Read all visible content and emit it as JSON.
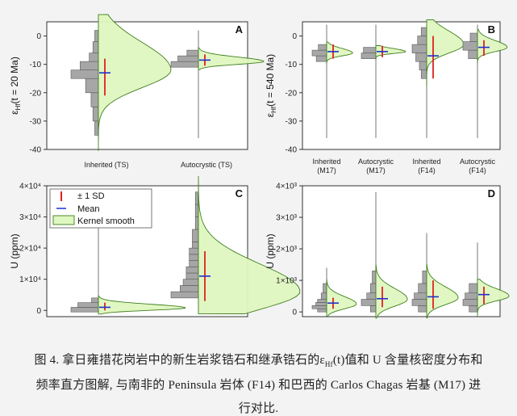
{
  "figure": {
    "caption": {
      "line1_a": "图 4. 拿日雍措花岗岩中的新生岩浆锆石和继承锆石的ε",
      "line1_sub": "Hf",
      "line1_b": "(t)值和 U 含量核密度分布和",
      "line2": "频率直方图解, 与南非的 Peninsula 岩体 (F14) 和巴西的 Carlos Chagas 岩基 (M17) 进",
      "line3": "行对比."
    }
  },
  "colors": {
    "kde_fill": "#dff7c0",
    "kde_stroke": "#3f7f1f",
    "hist_fill": "#a6a6a6",
    "hist_stroke": "#5a5a5a",
    "sd_bar": "#e02020",
    "mean_bar": "#1f2fd0",
    "axis": "#333333"
  },
  "chart_data": [
    {
      "panel": "A",
      "type": "violin-histogram",
      "ylabel_main": "ε",
      "ylabel_sub": "Hf",
      "ylabel_rest": "(t = 20 Ma)",
      "ylim": [
        -40,
        5
      ],
      "yticks": [
        "0",
        "-10",
        "-20",
        "-30",
        "-40"
      ],
      "ytick_values": [
        0,
        -10,
        -20,
        -30,
        -40
      ],
      "groups": [
        {
          "label_lines": [
            "Inherited (TS)"
          ],
          "mean": -13,
          "sd_low": -21,
          "sd_high": -8,
          "y_min": -35,
          "y_max": 2,
          "hist": [
            [
              -35,
              -30,
              2
            ],
            [
              -30,
              -25,
              3
            ],
            [
              -25,
              -20,
              4
            ],
            [
              -20,
              -15,
              7
            ],
            [
              -15,
              -12,
              15
            ],
            [
              -12,
              -9,
              10
            ],
            [
              -9,
              -6,
              5
            ],
            [
              -6,
              -2,
              3
            ],
            [
              -2,
              2,
              2
            ]
          ],
          "kde_peak": -12,
          "kde_scale": 1.0
        },
        {
          "label_lines": [
            "Autocrystic (TS)"
          ],
          "mean": -8.5,
          "sd_low": -10.5,
          "sd_high": -6.5,
          "y_min": -36,
          "y_max": 2,
          "hist": [
            [
              -11,
              -9,
              12
            ],
            [
              -9,
              -7,
              9
            ],
            [
              -7,
              -5,
              5
            ]
          ],
          "kde_peak": -9,
          "kde_scale": 0.9
        }
      ]
    },
    {
      "panel": "B",
      "type": "violin-histogram",
      "ylabel_main": "ε",
      "ylabel_sub": "Hf",
      "ylabel_rest": "(t = 540 Ma)",
      "ylim": [
        -40,
        5
      ],
      "yticks": [
        "0",
        "-10",
        "-20",
        "-30",
        "-40"
      ],
      "ytick_values": [
        0,
        -10,
        -20,
        -30,
        -40
      ],
      "groups": [
        {
          "label_lines": [
            "Inherited",
            "(M17)"
          ],
          "mean": -5.5,
          "sd_low": -8,
          "sd_high": -3,
          "y_min": -36,
          "y_max": 4,
          "hist": [
            [
              -9,
              -7,
              5
            ],
            [
              -7,
              -5,
              7
            ],
            [
              -5,
              -3,
              4
            ]
          ],
          "kde_peak": -6,
          "kde_scale": 0.7
        },
        {
          "label_lines": [
            "Autocrystic",
            "(M17)"
          ],
          "mean": -5.5,
          "sd_low": -7.5,
          "sd_high": -3.5,
          "y_min": -36,
          "y_max": 4,
          "hist": [
            [
              -8,
              -6,
              7
            ],
            [
              -6,
              -4,
              6
            ]
          ],
          "kde_peak": -5.5,
          "kde_scale": 0.8
        },
        {
          "label_lines": [
            "Inherited",
            "(F14)"
          ],
          "mean": -7,
          "sd_low": -15,
          "sd_high": 0,
          "y_min": -36,
          "y_max": 4,
          "hist": [
            [
              -15,
              -12,
              3
            ],
            [
              -12,
              -9,
              4
            ],
            [
              -9,
              -6,
              6
            ],
            [
              -6,
              -3,
              8
            ],
            [
              -3,
              0,
              5
            ],
            [
              0,
              3,
              3
            ]
          ],
          "kde_peak": -3,
          "kde_scale": 1.0
        },
        {
          "label_lines": [
            "Autocrystic",
            "(F14)"
          ],
          "mean": -4,
          "sd_low": -7,
          "sd_high": -1.5,
          "y_min": -36,
          "y_max": 4,
          "hist": [
            [
              -8,
              -5,
              5
            ],
            [
              -5,
              -2,
              8
            ],
            [
              -2,
              1,
              4
            ]
          ],
          "kde_peak": -4,
          "kde_scale": 0.8
        }
      ]
    },
    {
      "panel": "C",
      "type": "violin-histogram",
      "ylabel_main": "U (ppm)",
      "ylim": [
        -2000,
        40000
      ],
      "yticks": [
        "0",
        "1×10⁴",
        "2×10⁴",
        "3×10⁴",
        "4×10⁴"
      ],
      "ytick_values": [
        0,
        10000,
        20000,
        30000,
        40000
      ],
      "legend": [
        "± 1 SD",
        "Mean",
        "Kernel smooth"
      ],
      "groups": [
        {
          "label_lines": [],
          "mean": 1000,
          "sd_low": 0,
          "sd_high": 2500,
          "y_min": 0,
          "y_max": 38000,
          "hist": [
            [
              -500,
              1000,
              12
            ],
            [
              1000,
              2500,
              9
            ],
            [
              2500,
              4000,
              3
            ]
          ],
          "kde_peak": 800,
          "kde_scale": 1.2
        },
        {
          "label_lines": [],
          "mean": 11000,
          "sd_low": 3000,
          "sd_high": 19000,
          "y_min": 0,
          "y_max": 38000,
          "hist": [
            [
              4000,
              6000,
              9
            ],
            [
              6000,
              8000,
              6
            ],
            [
              8000,
              10000,
              5
            ],
            [
              10000,
              12000,
              4
            ],
            [
              12000,
              14000,
              4
            ],
            [
              14000,
              16000,
              3
            ],
            [
              16000,
              18000,
              3
            ],
            [
              18000,
              20000,
              3
            ],
            [
              20000,
              22000,
              2
            ],
            [
              22000,
              26000,
              2
            ],
            [
              26000,
              30000,
              1
            ],
            [
              30000,
              34000,
              1
            ],
            [
              34000,
              38000,
              1
            ]
          ],
          "kde_peak": 6000,
          "kde_scale": 1.4
        }
      ]
    },
    {
      "panel": "D",
      "type": "violin-histogram",
      "ylabel_main": "U (ppm)",
      "ylim": [
        -150,
        4000
      ],
      "yticks": [
        "0",
        "1×10³",
        "2×10³",
        "3×10³",
        "4×10³"
      ],
      "ytick_values": [
        0,
        1000,
        2000,
        3000,
        4000
      ],
      "groups": [
        {
          "label_lines": [],
          "mean": 280,
          "sd_low": 100,
          "sd_high": 450,
          "y_min": 0,
          "y_max": 1400,
          "hist": [
            [
              0,
              100,
              5
            ],
            [
              100,
              200,
              8
            ],
            [
              200,
              300,
              6
            ],
            [
              300,
              400,
              5
            ],
            [
              400,
              600,
              3
            ],
            [
              600,
              900,
              2
            ]
          ],
          "kde_peak": 250,
          "kde_scale": 0.8
        },
        {
          "label_lines": [],
          "mean": 420,
          "sd_low": 150,
          "sd_high": 800,
          "y_min": 0,
          "y_max": 3800,
          "hist": [
            [
              0,
              200,
              3
            ],
            [
              200,
              400,
              8
            ],
            [
              400,
              600,
              5
            ],
            [
              600,
              900,
              3
            ],
            [
              900,
              1300,
              2
            ]
          ],
          "kde_peak": 400,
          "kde_scale": 0.85
        },
        {
          "label_lines": [],
          "mean": 480,
          "sd_low": 100,
          "sd_high": 1000,
          "y_min": 0,
          "y_max": 2500,
          "hist": [
            [
              0,
              200,
              4
            ],
            [
              200,
              400,
              7
            ],
            [
              400,
              600,
              6
            ],
            [
              600,
              900,
              4
            ],
            [
              900,
              1300,
              2
            ]
          ],
          "kde_peak": 450,
          "kde_scale": 0.85
        },
        {
          "label_lines": [],
          "mean": 550,
          "sd_low": 250,
          "sd_high": 800,
          "y_min": 0,
          "y_max": 2200,
          "hist": [
            [
              0,
              200,
              4
            ],
            [
              200,
              400,
              7
            ],
            [
              400,
              600,
              6
            ],
            [
              600,
              900,
              4
            ]
          ],
          "kde_peak": 500,
          "kde_scale": 0.85
        }
      ]
    }
  ]
}
